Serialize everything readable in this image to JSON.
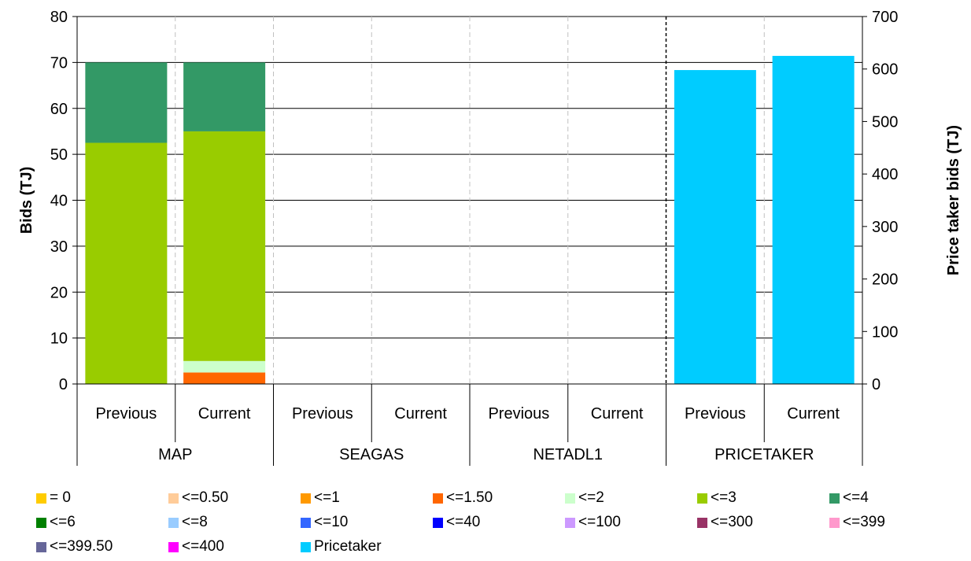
{
  "chart_data": {
    "type": "bar",
    "stacked": true,
    "grid": true,
    "legend_placement": "bottom",
    "y_left": {
      "label": "Bids (TJ)",
      "ylim": [
        0,
        80
      ],
      "ticks": [
        0,
        10,
        20,
        30,
        40,
        50,
        60,
        70,
        80
      ]
    },
    "y_right": {
      "label": "Price taker bids (TJ)",
      "ylim": [
        0,
        700
      ],
      "ticks": [
        0,
        100,
        200,
        300,
        400,
        500,
        600,
        700
      ]
    },
    "groups": [
      {
        "name": "MAP",
        "bars": [
          {
            "label": "Previous",
            "axis": "left",
            "segments": [
              {
                "series": "<=3",
                "value": 52.5
              },
              {
                "series": "<=4",
                "value": 17.5
              }
            ]
          },
          {
            "label": "Current",
            "axis": "left",
            "segments": [
              {
                "series": "<=1.50",
                "value": 2.5
              },
              {
                "series": "<=2",
                "value": 2.5
              },
              {
                "series": "<=3",
                "value": 50
              },
              {
                "series": "<=4",
                "value": 15
              }
            ]
          }
        ]
      },
      {
        "name": "SEAGAS",
        "bars": [
          {
            "label": "Previous",
            "axis": "left",
            "segments": []
          },
          {
            "label": "Current",
            "axis": "left",
            "segments": []
          }
        ]
      },
      {
        "name": "NETADL1",
        "bars": [
          {
            "label": "Previous",
            "axis": "left",
            "segments": []
          },
          {
            "label": "Current",
            "axis": "left",
            "segments": []
          }
        ]
      },
      {
        "name": "PRICETAKER",
        "bars": [
          {
            "label": "Previous",
            "axis": "right",
            "segments": [
              {
                "series": "Pricetaker",
                "value": 598
              }
            ]
          },
          {
            "label": "Current",
            "axis": "right",
            "segments": [
              {
                "series": "Pricetaker",
                "value": 625
              }
            ]
          }
        ]
      }
    ],
    "series": [
      {
        "name": "= 0",
        "color": "#FFCC00"
      },
      {
        "name": "<=0.50",
        "color": "#FFCC99"
      },
      {
        "name": "<=1",
        "color": "#FF9900"
      },
      {
        "name": "<=1.50",
        "color": "#FF6600"
      },
      {
        "name": "<=2",
        "color": "#CCFFCC"
      },
      {
        "name": "<=3",
        "color": "#99CC00"
      },
      {
        "name": "<=4",
        "color": "#339966"
      },
      {
        "name": "<=6",
        "color": "#008000"
      },
      {
        "name": "<=8",
        "color": "#99CCFF"
      },
      {
        "name": "<=10",
        "color": "#3366FF"
      },
      {
        "name": "<=40",
        "color": "#0000FF"
      },
      {
        "name": "<=100",
        "color": "#CC99FF"
      },
      {
        "name": "<=300",
        "color": "#993366"
      },
      {
        "name": "<=399",
        "color": "#FF99CC"
      },
      {
        "name": "<=399.50",
        "color": "#666699"
      },
      {
        "name": "<=400",
        "color": "#FF00FF"
      },
      {
        "name": "Pricetaker",
        "color": "#00CCFF"
      }
    ]
  }
}
